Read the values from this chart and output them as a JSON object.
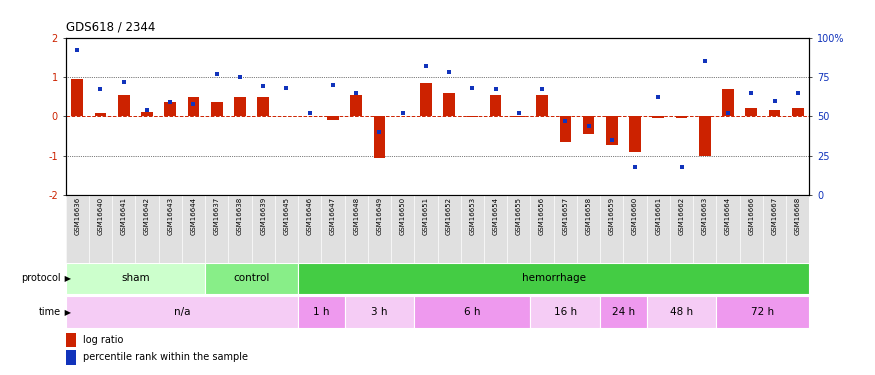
{
  "title": "GDS618 / 2344",
  "samples": [
    "GSM16636",
    "GSM16640",
    "GSM16641",
    "GSM16642",
    "GSM16643",
    "GSM16644",
    "GSM16637",
    "GSM16638",
    "GSM16639",
    "GSM16645",
    "GSM16646",
    "GSM16647",
    "GSM16648",
    "GSM16649",
    "GSM16650",
    "GSM16651",
    "GSM16652",
    "GSM16653",
    "GSM16654",
    "GSM16655",
    "GSM16656",
    "GSM16657",
    "GSM16658",
    "GSM16659",
    "GSM16660",
    "GSM16661",
    "GSM16662",
    "GSM16663",
    "GSM16664",
    "GSM16666",
    "GSM16667",
    "GSM16668"
  ],
  "log_ratio": [
    0.95,
    0.07,
    0.55,
    0.1,
    0.35,
    0.5,
    0.35,
    0.5,
    0.5,
    0.0,
    0.0,
    -0.1,
    0.55,
    -1.05,
    0.0,
    0.85,
    0.6,
    -0.02,
    0.55,
    -0.02,
    0.55,
    -0.65,
    -0.45,
    -0.72,
    -0.9,
    -0.05,
    -0.05,
    -1.0,
    0.7,
    0.22,
    0.15,
    0.2
  ],
  "percentile": [
    92,
    67,
    72,
    54,
    59,
    58,
    77,
    75,
    69,
    68,
    52,
    70,
    65,
    40,
    52,
    82,
    78,
    68,
    67,
    52,
    67,
    47,
    44,
    35,
    18,
    62,
    18,
    85,
    52,
    65,
    60,
    65
  ],
  "protocol_groups": [
    {
      "label": "sham",
      "start": 0,
      "end": 5,
      "color": "#ccffcc"
    },
    {
      "label": "control",
      "start": 6,
      "end": 9,
      "color": "#88ee88"
    },
    {
      "label": "hemorrhage",
      "start": 10,
      "end": 31,
      "color": "#44cc44"
    }
  ],
  "time_groups": [
    {
      "label": "n/a",
      "start": 0,
      "end": 9,
      "color": "#f5ccf5"
    },
    {
      "label": "1 h",
      "start": 10,
      "end": 11,
      "color": "#ee99ee"
    },
    {
      "label": "3 h",
      "start": 12,
      "end": 14,
      "color": "#f5ccf5"
    },
    {
      "label": "6 h",
      "start": 15,
      "end": 19,
      "color": "#ee99ee"
    },
    {
      "label": "16 h",
      "start": 20,
      "end": 22,
      "color": "#f5ccf5"
    },
    {
      "label": "24 h",
      "start": 23,
      "end": 24,
      "color": "#ee99ee"
    },
    {
      "label": "48 h",
      "start": 25,
      "end": 27,
      "color": "#f5ccf5"
    },
    {
      "label": "72 h",
      "start": 28,
      "end": 31,
      "color": "#ee99ee"
    }
  ],
  "bar_color": "#cc2200",
  "dot_color": "#1133bb",
  "ylim": [
    -2,
    2
  ],
  "y2lim": [
    0,
    100
  ],
  "yticks_left": [
    -2,
    -1,
    0,
    1,
    2
  ],
  "yticks_right": [
    0,
    25,
    50,
    75,
    100
  ],
  "background_color": "#ffffff"
}
